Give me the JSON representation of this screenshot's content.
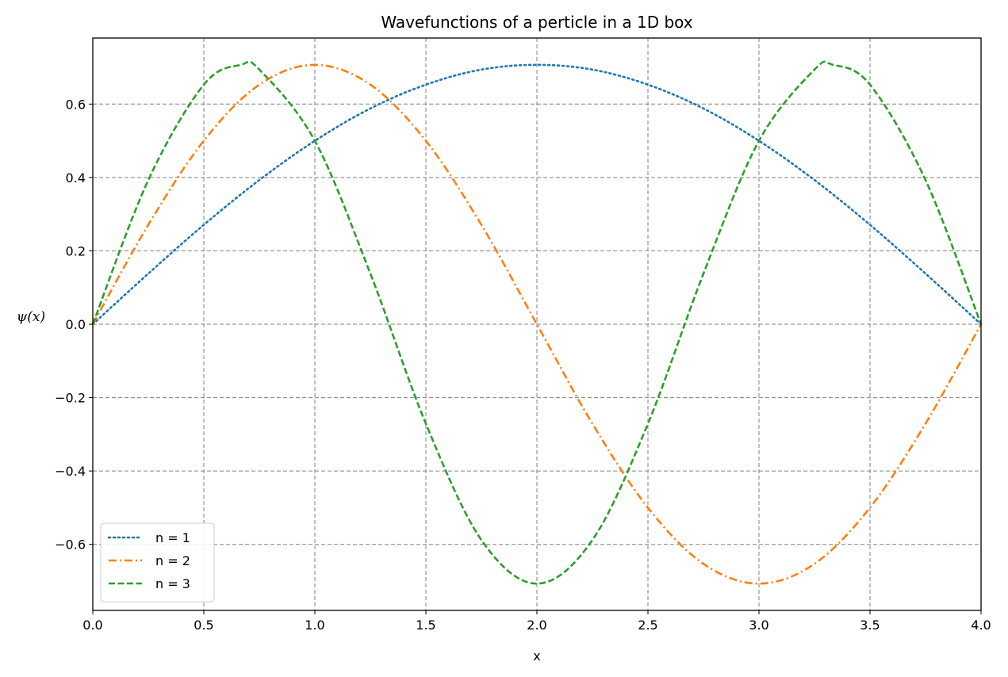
{
  "chart_data": {
    "type": "line",
    "title": "Wavefunctions of a perticle in a 1D box",
    "xlabel": "x",
    "ylabel": "ψ(x)",
    "xlim": [
      0.0,
      4.0
    ],
    "ylim": [
      -0.78,
      0.78
    ],
    "x_ticks": [
      "0.0",
      "0.5",
      "1.0",
      "1.5",
      "2.0",
      "2.5",
      "3.0",
      "3.5",
      "4.0"
    ],
    "y_ticks": [
      "−0.6",
      "−0.4",
      "−0.2",
      "0.0",
      "0.2",
      "0.4",
      "0.6"
    ],
    "grid": true,
    "legend_position": "lower-left",
    "series": [
      {
        "name": "n = 1",
        "color": "#1f77b4",
        "style": "dotted",
        "x": [
          0.0,
          0.25,
          0.5,
          0.75,
          1.0,
          1.25,
          1.5,
          1.75,
          2.0,
          2.25,
          2.5,
          2.75,
          3.0,
          3.25,
          3.5,
          3.75,
          4.0
        ],
        "y": [
          0.0,
          0.138,
          0.271,
          0.393,
          0.5,
          0.588,
          0.653,
          0.694,
          0.707,
          0.694,
          0.653,
          0.588,
          0.5,
          0.393,
          0.271,
          0.138,
          0.0
        ]
      },
      {
        "name": "n = 2",
        "color": "#ff7f0e",
        "style": "dashdot",
        "x": [
          0.0,
          0.25,
          0.5,
          0.75,
          1.0,
          1.25,
          1.5,
          1.75,
          2.0,
          2.25,
          2.5,
          2.75,
          3.0,
          3.25,
          3.5,
          3.75,
          4.0
        ],
        "y": [
          0.0,
          0.271,
          0.5,
          0.653,
          0.707,
          0.653,
          0.5,
          0.271,
          0.0,
          -0.271,
          -0.5,
          -0.653,
          -0.707,
          -0.653,
          -0.5,
          -0.271,
          0.0
        ]
      },
      {
        "name": "n = 3",
        "color": "#2ca02c",
        "style": "dashed",
        "x": [
          0.0,
          0.25,
          0.5,
          0.667,
          0.75,
          1.0,
          1.25,
          1.5,
          1.75,
          2.0,
          2.25,
          2.5,
          2.75,
          3.0,
          3.25,
          3.333,
          3.5,
          3.75,
          4.0
        ],
        "y": [
          0.0,
          0.393,
          0.653,
          0.707,
          0.694,
          0.5,
          0.138,
          -0.271,
          -0.588,
          -0.707,
          -0.588,
          -0.271,
          0.138,
          0.5,
          0.694,
          0.707,
          0.653,
          0.393,
          0.0
        ]
      }
    ]
  }
}
